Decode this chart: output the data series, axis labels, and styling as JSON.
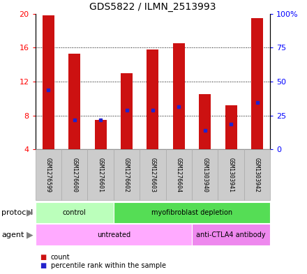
{
  "title": "GDS5822 / ILMN_2513993",
  "samples": [
    "GSM1276599",
    "GSM1276600",
    "GSM1276601",
    "GSM1276602",
    "GSM1276603",
    "GSM1276604",
    "GSM1303940",
    "GSM1303941",
    "GSM1303942"
  ],
  "bar_heights": [
    19.8,
    15.3,
    7.5,
    13.0,
    15.8,
    16.5,
    10.5,
    9.2,
    19.5
  ],
  "bar_base": 4.0,
  "percentile_values": [
    11.0,
    7.5,
    7.5,
    8.6,
    8.6,
    9.0,
    6.2,
    7.0,
    9.5
  ],
  "bar_color": "#cc1111",
  "percentile_color": "#2222cc",
  "ylim_left": [
    4,
    20
  ],
  "yticks_left": [
    4,
    8,
    12,
    16,
    20
  ],
  "ylim_right": [
    0,
    100
  ],
  "yticks_right": [
    0,
    25,
    50,
    75,
    100
  ],
  "ytick_labels_right": [
    "0",
    "25",
    "50",
    "75",
    "100%"
  ],
  "grid_values": [
    8,
    12,
    16
  ],
  "protocol_groups": [
    {
      "label": "control",
      "start": 0,
      "end": 3,
      "color": "#bbffbb"
    },
    {
      "label": "myofibroblast depletion",
      "start": 3,
      "end": 9,
      "color": "#55dd55"
    }
  ],
  "agent_groups": [
    {
      "label": "untreated",
      "start": 0,
      "end": 6,
      "color": "#ffaaff"
    },
    {
      "label": "anti-CTLA4 antibody",
      "start": 6,
      "end": 9,
      "color": "#ee88ee"
    }
  ],
  "protocol_label": "protocol",
  "agent_label": "agent",
  "legend_count_label": "count",
  "legend_percentile_label": "percentile rank within the sample",
  "bar_width": 0.45,
  "title_fontsize": 10,
  "tick_fontsize": 8,
  "label_fontsize": 8,
  "sample_fontsize": 6,
  "gray_box_color": "#cccccc",
  "gray_box_edge_color": "#aaaaaa"
}
